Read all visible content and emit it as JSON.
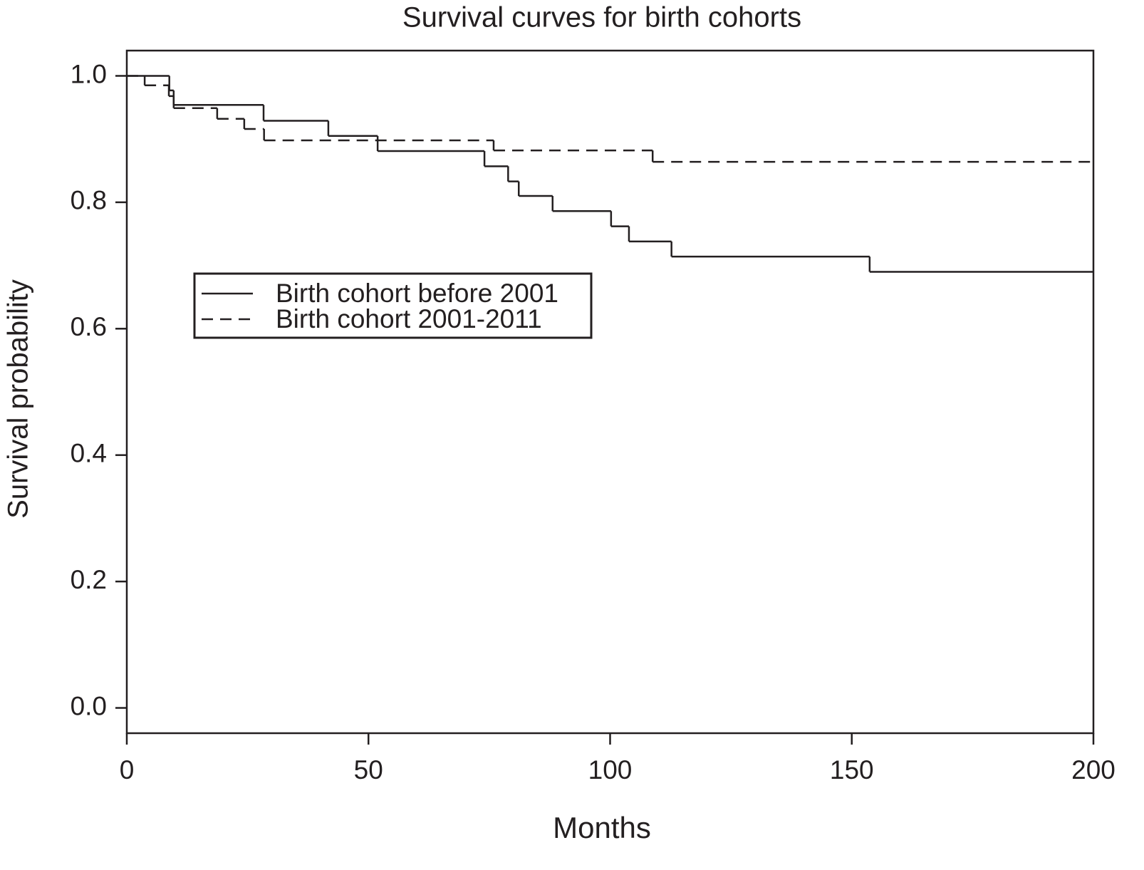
{
  "chart_data": {
    "type": "step",
    "title": "Survival curves for birth cohorts",
    "x_label": "Months",
    "y_label": "Survival probability",
    "xlim": [
      0,
      200
    ],
    "ylim": [
      -0.04,
      1.04
    ],
    "xticks": [
      0,
      50,
      100,
      150,
      200
    ],
    "yticks": [
      {
        "value": 0,
        "label": "0.0"
      },
      0.2,
      0.4,
      0.6,
      0.8,
      {
        "value": 1,
        "label": "1.0"
      }
    ],
    "legend_position": "upper left",
    "series": [
      {
        "name": "Birth cohort before 2001",
        "color": "#231f20",
        "dash": "solid",
        "x": [
          0,
          8.8,
          9.7,
          28.3,
          41.7,
          51.9,
          74.0,
          78.9,
          81.1,
          88.1,
          100.2,
          103.9,
          112.7,
          153.7,
          200
        ],
        "values": [
          1.0,
          0.977,
          0.954,
          0.929,
          0.905,
          0.881,
          0.857,
          0.833,
          0.81,
          0.786,
          0.762,
          0.738,
          0.714,
          0.69,
          0.69
        ]
      },
      {
        "name": "Birth cohort 2001-2011",
        "color": "#231f20",
        "dash": "dashed",
        "x": [
          0,
          3.7,
          8.7,
          9.7,
          18.7,
          24.3,
          28.4,
          75.9,
          108.8,
          200
        ],
        "values": [
          1.0,
          0.985,
          0.968,
          0.949,
          0.932,
          0.916,
          0.898,
          0.882,
          0.864,
          0.864
        ]
      }
    ]
  }
}
